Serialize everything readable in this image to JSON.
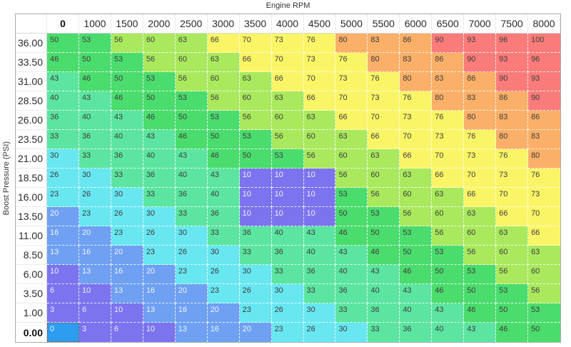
{
  "x_axis_title": "Engine RPM",
  "y_axis_title": "Boost Pressure (PSI)",
  "table": {
    "col_headers": [
      "0",
      "1000",
      "1500",
      "2000",
      "2500",
      "3000",
      "3500",
      "4000",
      "4500",
      "5000",
      "5500",
      "6000",
      "6500",
      "7000",
      "7500",
      "8000"
    ],
    "row_headers": [
      "36.00",
      "33.50",
      "31.00",
      "28.50",
      "26.00",
      "23.50",
      "21.00",
      "18.50",
      "16.00",
      "13.50",
      "11.00",
      "8.50",
      "6.00",
      "3.50",
      "1.00",
      "0.00"
    ],
    "rows": [
      [
        50,
        53,
        56,
        60,
        63,
        66,
        70,
        73,
        76,
        80,
        83,
        86,
        90,
        93,
        96,
        100
      ],
      [
        46,
        50,
        53,
        56,
        60,
        63,
        66,
        70,
        73,
        76,
        80,
        83,
        86,
        90,
        93,
        96
      ],
      [
        43,
        46,
        50,
        53,
        56,
        60,
        63,
        66,
        70,
        73,
        76,
        80,
        83,
        86,
        90,
        93
      ],
      [
        40,
        43,
        46,
        50,
        53,
        56,
        60,
        63,
        66,
        70,
        73,
        76,
        80,
        83,
        86,
        90
      ],
      [
        36,
        40,
        43,
        46,
        50,
        53,
        56,
        60,
        63,
        66,
        70,
        73,
        76,
        80,
        83,
        86
      ],
      [
        33,
        36,
        40,
        43,
        46,
        50,
        53,
        56,
        60,
        63,
        66,
        70,
        73,
        76,
        80,
        83
      ],
      [
        30,
        33,
        36,
        40,
        43,
        46,
        50,
        53,
        56,
        60,
        63,
        66,
        70,
        73,
        76,
        80
      ],
      [
        26,
        30,
        33,
        36,
        40,
        43,
        10,
        10,
        10,
        56,
        60,
        63,
        66,
        70,
        73,
        76
      ],
      [
        23,
        26,
        30,
        33,
        36,
        40,
        10,
        10,
        10,
        53,
        56,
        60,
        63,
        66,
        70,
        73
      ],
      [
        20,
        23,
        26,
        30,
        33,
        36,
        10,
        10,
        10,
        50,
        53,
        56,
        60,
        63,
        66,
        70
      ],
      [
        16,
        20,
        23,
        26,
        30,
        33,
        36,
        40,
        43,
        46,
        50,
        53,
        56,
        60,
        63,
        66
      ],
      [
        13,
        16,
        20,
        23,
        26,
        30,
        33,
        36,
        40,
        43,
        46,
        50,
        53,
        56,
        60,
        63
      ],
      [
        10,
        13,
        16,
        20,
        23,
        26,
        30,
        33,
        36,
        40,
        43,
        46,
        50,
        53,
        56,
        60
      ],
      [
        6,
        10,
        13,
        16,
        20,
        23,
        26,
        30,
        33,
        36,
        40,
        43,
        46,
        50,
        53,
        56
      ],
      [
        3,
        6,
        10,
        13,
        16,
        20,
        23,
        26,
        30,
        33,
        36,
        40,
        43,
        46,
        50,
        53
      ],
      [
        0,
        3,
        6,
        10,
        13,
        16,
        20,
        23,
        26,
        30,
        33,
        36,
        40,
        43,
        46,
        50
      ]
    ],
    "selected": {
      "row": 15,
      "col": 0
    }
  },
  "heat_scale": [
    {
      "max": 10,
      "bg": "#7C74EE",
      "fg": "#EDEDF8"
    },
    {
      "max": 20,
      "bg": "#6FA0F2",
      "fg": "#EFF4FC"
    },
    {
      "max": 30,
      "bg": "#69E7F1",
      "fg": "#3E3E3E"
    },
    {
      "max": 43,
      "bg": "#5CE5A1",
      "fg": "#3E3E3E"
    },
    {
      "max": 53,
      "bg": "#4BDC6E",
      "fg": "#3E3E3E"
    },
    {
      "max": 63,
      "bg": "#AAE95E",
      "fg": "#3E3E3E"
    },
    {
      "max": 76,
      "bg": "#FAF567",
      "fg": "#3E3E3E"
    },
    {
      "max": 86,
      "bg": "#FAB068",
      "fg": "#3E3E3E"
    },
    {
      "max": 100,
      "bg": "#F97C7B",
      "fg": "#3E3E3E"
    }
  ],
  "selected_style": {
    "bg": "#2D9DF0",
    "fg": "#F2F7FE",
    "border": "#6F6A5E"
  },
  "colors": {
    "background": "#FFFFFF",
    "outer_border": "#ABABAB",
    "header_border": "#EBEBEB",
    "header_separator": "#D9D9D9",
    "grid_dash": "#FFFFFF",
    "header_text": "#2B2B2B",
    "axis_text": "#333333"
  }
}
